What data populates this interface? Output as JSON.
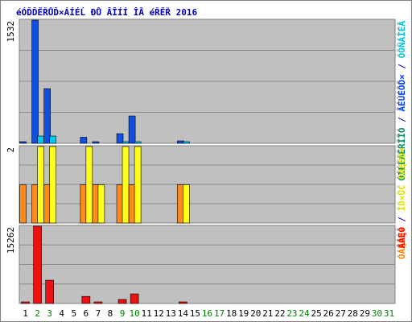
{
  "chart_data": [
    {
      "type": "bar",
      "title": "éÓĎĎĚŘŮĎ×ÁÍÉĹ ĐŮ ÂÎÍÍ ÎÂ éŘĚŘ 2016",
      "categories": [
        "1",
        "2",
        "3",
        "4",
        "5",
        "6",
        "7",
        "8",
        "9",
        "10",
        "11",
        "12",
        "13",
        "14",
        "15",
        "16",
        "17",
        "18",
        "19",
        "20",
        "21",
        "22",
        "23",
        "24",
        "25",
        "26",
        "27",
        "28",
        "29",
        "30",
        "31"
      ],
      "ymax_label": "1532",
      "ylim": [
        0,
        1532
      ],
      "right_labels": [
        {
          "text": "ÓÍÉËÁĚŘÎÎÓ",
          "color": "#009060"
        },
        {
          "text": " / ",
          "color": "#0000c0"
        },
        {
          "text": "ÂÉÚÉÔĎ×",
          "color": "#0040ff"
        },
        {
          "text": " / ",
          "color": "#0000c0"
        },
        {
          "text": "ÓÔŇÁÎÉĂ",
          "color": "#00c0e0"
        }
      ],
      "series": [
        {
          "name": "ÂÉÚÉÔĎ×",
          "color": "#1050e0",
          "values": [
            20,
            1532,
            680,
            0,
            0,
            75,
            10,
            0,
            120,
            340,
            0,
            0,
            0,
            30,
            0,
            0,
            0,
            0,
            0,
            0,
            0,
            0,
            0,
            0,
            0,
            0,
            0,
            0,
            0,
            0,
            0
          ]
        },
        {
          "name": "ÓÔŇÁÎÉĂ",
          "color": "#00c8f0",
          "values": [
            0,
            90,
            90,
            0,
            0,
            0,
            0,
            0,
            10,
            20,
            0,
            0,
            0,
            10,
            0,
            0,
            0,
            0,
            0,
            0,
            0,
            0,
            0,
            0,
            0,
            0,
            0,
            0,
            0,
            0,
            0
          ]
        }
      ]
    },
    {
      "type": "bar",
      "ymax_label": "2",
      "ylim": [
        0,
        2
      ],
      "right_labels": [
        {
          "text": "ÓÁĘÔĎ×",
          "color": "#ff8000"
        },
        {
          "text": " / ",
          "color": "#0000c0"
        },
        {
          "text": "ÎĎ×ŮČ ÓÁĘÔĎ×",
          "color": "#e0e000"
        }
      ],
      "series": [
        {
          "name": "ÓÁĘÔĎ×",
          "color": "#ff8c1a",
          "values": [
            1,
            1,
            1,
            0,
            0,
            1,
            1,
            0,
            1,
            1,
            0,
            0,
            0,
            1,
            0,
            0,
            0,
            0,
            0,
            0,
            0,
            0,
            0,
            0,
            0,
            0,
            0,
            0,
            0,
            0,
            0
          ]
        },
        {
          "name": "ÎĎ×ŮČ ÓÁĘÔĎ×",
          "color": "#ffff1a",
          "values": [
            0,
            2,
            2,
            0,
            0,
            2,
            1,
            0,
            2,
            2,
            0,
            0,
            0,
            1,
            0,
            0,
            0,
            0,
            0,
            0,
            0,
            0,
            0,
            0,
            0,
            0,
            0,
            0,
            0,
            0,
            0
          ]
        }
      ]
    },
    {
      "type": "bar",
      "ymax_label": "15262",
      "ylim": [
        0,
        15262
      ],
      "right_labels": [
        {
          "text": "ÂÁĘÔ",
          "color": "#ff0000"
        }
      ],
      "series": [
        {
          "name": "ÂÁĘÔ",
          "color": "#ee1111",
          "values": [
            200,
            15262,
            4600,
            0,
            0,
            1400,
            250,
            0,
            800,
            1900,
            0,
            0,
            0,
            250,
            0,
            0,
            0,
            0,
            0,
            0,
            0,
            0,
            0,
            0,
            0,
            0,
            0,
            0,
            0,
            0,
            0
          ]
        }
      ]
    }
  ],
  "weekend_days": [
    2,
    3,
    9,
    10,
    16,
    17,
    23,
    24,
    30,
    31
  ],
  "colors": {
    "weekday_label": "#000000",
    "weekend_label": "#008000",
    "plot_bg": "#c0c0c0",
    "frame": "#808080",
    "title": "#0000c0"
  }
}
